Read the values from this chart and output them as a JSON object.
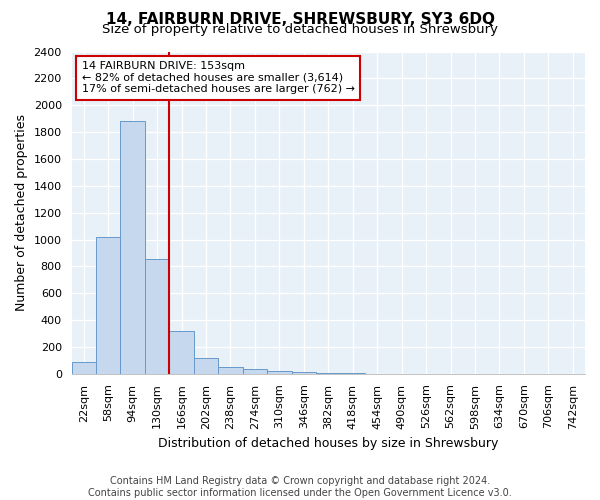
{
  "title": "14, FAIRBURN DRIVE, SHREWSBURY, SY3 6DQ",
  "subtitle": "Size of property relative to detached houses in Shrewsbury",
  "xlabel": "Distribution of detached houses by size in Shrewsbury",
  "ylabel": "Number of detached properties",
  "footer_line1": "Contains HM Land Registry data © Crown copyright and database right 2024.",
  "footer_line2": "Contains public sector information licensed under the Open Government Licence v3.0.",
  "categories": [
    "22sqm",
    "58sqm",
    "94sqm",
    "130sqm",
    "166sqm",
    "202sqm",
    "238sqm",
    "274sqm",
    "310sqm",
    "346sqm",
    "382sqm",
    "418sqm",
    "454sqm",
    "490sqm",
    "526sqm",
    "562sqm",
    "598sqm",
    "634sqm",
    "670sqm",
    "706sqm",
    "742sqm"
  ],
  "values": [
    88,
    1020,
    1880,
    855,
    320,
    120,
    50,
    35,
    20,
    12,
    8,
    4,
    2,
    2,
    0,
    0,
    0,
    0,
    0,
    0,
    0
  ],
  "bar_color": "#c5d8ed",
  "bar_edge_color": "#6699cc",
  "ylim": [
    0,
    2400
  ],
  "yticks": [
    0,
    200,
    400,
    600,
    800,
    1000,
    1200,
    1400,
    1600,
    1800,
    2000,
    2200,
    2400
  ],
  "red_line_color": "#cc0000",
  "annotation_title": "14 FAIRBURN DRIVE: 153sqm",
  "annotation_line1": "← 82% of detached houses are smaller (3,614)",
  "annotation_line2": "17% of semi-detached houses are larger (762) →",
  "annotation_box_color": "#cc0000",
  "plot_bg_color": "#e8f0f8",
  "fig_bg_color": "#ffffff",
  "grid_color": "#ffffff",
  "title_fontsize": 11,
  "subtitle_fontsize": 9.5,
  "label_fontsize": 9,
  "tick_fontsize": 8,
  "footer_fontsize": 7,
  "red_line_x": 3.5
}
